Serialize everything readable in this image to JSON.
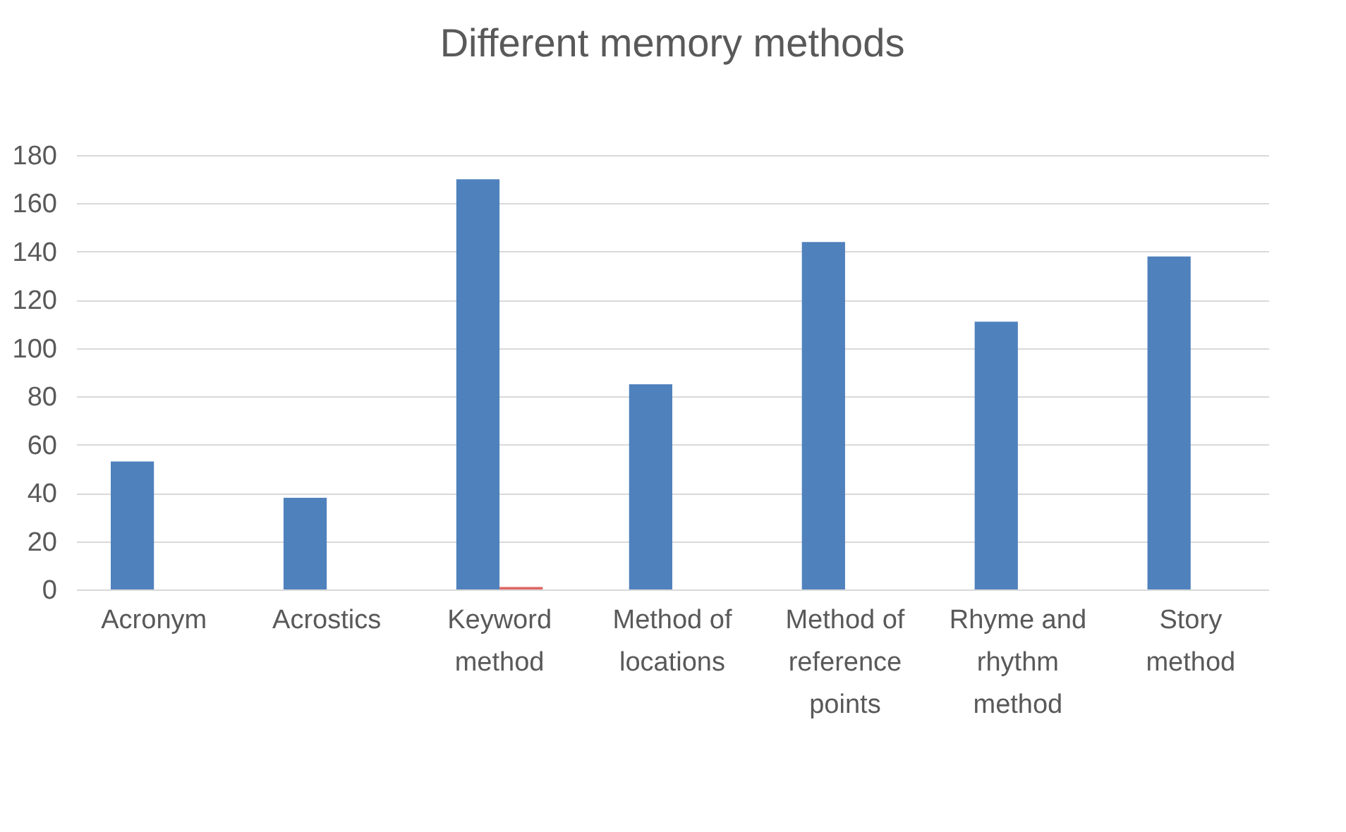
{
  "chart_data": {
    "type": "bar",
    "title": "Different memory methods",
    "categories": [
      "Acronym",
      "Acrostics",
      "Keyword method",
      "Method of locations",
      "Method of reference points",
      "Rhyme and rhythm method",
      "Story method"
    ],
    "series": [
      {
        "color": "#4f81bd",
        "values": [
          53,
          38,
          170,
          85,
          144,
          111,
          138
        ]
      },
      {
        "colors": [
          "#d9d9d9",
          "#d9d9d9",
          "#e06666",
          "#d9d9d9",
          "#d9d9d9",
          "#d9d9d9",
          "#d9d9d9"
        ],
        "values": [
          null,
          null,
          1,
          null,
          null,
          null,
          null
        ]
      }
    ],
    "ylim": [
      0,
      180
    ],
    "yticks": [
      0,
      20,
      40,
      60,
      80,
      100,
      120,
      140,
      160,
      180
    ],
    "grid": "y"
  }
}
